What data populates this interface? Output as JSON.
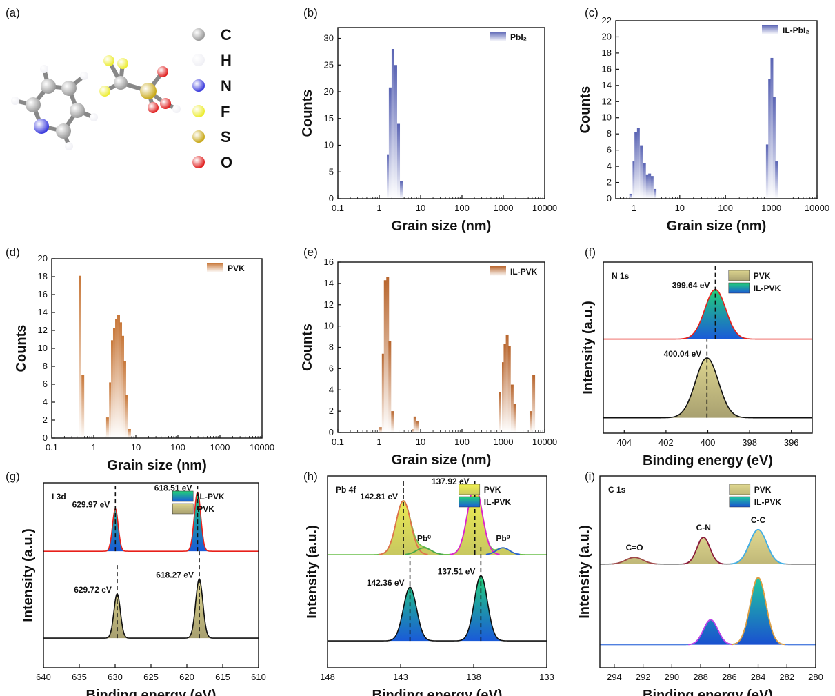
{
  "molecule": {
    "label": "(a)",
    "elements": [
      {
        "symbol": "C",
        "color": "#9a9a9a"
      },
      {
        "symbol": "H",
        "color": "#f0f0f5"
      },
      {
        "symbol": "N",
        "color": "#3a3adc"
      },
      {
        "symbol": "F",
        "color": "#ecec30"
      },
      {
        "symbol": "S",
        "color": "#c8a818"
      },
      {
        "symbol": "O",
        "color": "#e02020"
      }
    ]
  },
  "chart_data": [
    {
      "type": "bar",
      "label": "(b)",
      "xlabel": "Grain size (nm)",
      "ylabel": "Counts",
      "xlog": true,
      "xlim": [
        0.1,
        10000
      ],
      "xticks": [
        0.1,
        1,
        10,
        100,
        1000,
        10000
      ],
      "ylim": [
        0,
        32
      ],
      "yticks": [
        0,
        5,
        10,
        15,
        20,
        25,
        30
      ],
      "legend": "upper right",
      "series": [
        {
          "name": "PbI₂",
          "color": "#5a64b4",
          "x": [
            1.65,
            1.84,
            2.15,
            2.51,
            2.93,
            3.42
          ],
          "values": [
            8.3,
            20.8,
            28,
            25,
            14,
            3.3
          ]
        }
      ]
    },
    {
      "type": "bar",
      "label": "(c)",
      "xlabel": "Grain size (nm)",
      "ylabel": "Counts",
      "xlog": true,
      "xlim": [
        0.4,
        10000
      ],
      "xticks": [
        1,
        10,
        100,
        1000,
        10000
      ],
      "ylim": [
        0,
        22
      ],
      "yticks": [
        0,
        2,
        4,
        6,
        8,
        10,
        12,
        14,
        16,
        18,
        20,
        22
      ],
      "legend": "upper right",
      "series": [
        {
          "name": "IL-PbI₂",
          "color": "#5a64b4",
          "x": [
            0.85,
            1.0,
            1.1,
            1.25,
            1.45,
            1.7,
            1.95,
            2.2,
            2.5,
            2.9,
            820,
            920,
            1030,
            1160,
            1300
          ],
          "values": [
            0.6,
            4.6,
            8.2,
            8.7,
            6.6,
            4.4,
            3,
            3.1,
            2.8,
            1.2,
            6.7,
            14.8,
            17.4,
            12.6,
            4.6
          ]
        }
      ]
    },
    {
      "type": "bar",
      "label": "(d)",
      "xlabel": "Grain size (nm)",
      "ylabel": "Counts",
      "xlog": true,
      "xlim": [
        0.1,
        10000
      ],
      "xticks": [
        0.1,
        1,
        10,
        100,
        1000,
        10000
      ],
      "ylim": [
        0,
        20
      ],
      "yticks": [
        0,
        2,
        4,
        6,
        8,
        10,
        12,
        14,
        16,
        18,
        20
      ],
      "legend": "upper right",
      "series": [
        {
          "name": "PVK",
          "color": "#c8783a",
          "x": [
            0.47,
            0.55,
            2.12,
            2.49,
            2.77,
            3.1,
            3.48,
            3.89,
            4.36,
            4.88,
            5.46,
            6.12,
            7.1
          ],
          "values": [
            18.1,
            7,
            2.3,
            6.2,
            10.9,
            12.3,
            13.3,
            13.7,
            12.9,
            11.4,
            8.6,
            4.8,
            1
          ]
        }
      ]
    },
    {
      "type": "bar",
      "label": "(e)",
      "xlabel": "Grain size (nm)",
      "ylabel": "Counts",
      "xlog": true,
      "xlim": [
        0.1,
        10000
      ],
      "xticks": [
        0.1,
        1,
        10,
        100,
        1000,
        10000
      ],
      "ylim": [
        0,
        16
      ],
      "yticks": [
        0,
        2,
        4,
        6,
        8,
        10,
        12,
        14,
        16
      ],
      "legend": "upper right",
      "series": [
        {
          "name": "IL-PVK",
          "color": "#b8662e",
          "x": [
            1.08,
            1.25,
            1.4,
            1.6,
            1.8,
            2.1,
            6.6,
            7.3,
            8.5,
            826,
            1000,
            1097,
            1240,
            1400,
            1640,
            1900,
            4640,
            5430
          ],
          "values": [
            0.5,
            7.4,
            14.3,
            14.6,
            8.6,
            2,
            0.3,
            1.5,
            1.1,
            3.8,
            6.6,
            8.3,
            9.2,
            8.1,
            4.5,
            2.7,
            2,
            5.4
          ]
        }
      ]
    },
    {
      "type": "xps",
      "label": "(f)",
      "title": "N 1s",
      "xlabel": "Binding energy (eV)",
      "ylabel": "Intensity (a.u.)",
      "xlim": [
        405,
        395
      ],
      "xticks": [
        404,
        402,
        400,
        398,
        396
      ],
      "ylim": [
        0,
        10
      ],
      "center_lines": true,
      "legend": "upper right",
      "series": [
        {
          "name": "PVK",
          "color": "#dcd48e",
          "color2": "#a8a070",
          "line": "#111111",
          "offset": 0.9,
          "peaks": [
            {
              "center": 400.04,
              "height": 3.5,
              "width": 0.55,
              "label": "400.04 eV"
            }
          ]
        },
        {
          "name": "IL-PVK",
          "color": "#22d07a",
          "color2": "#1a5ad8",
          "line": "#e8201a",
          "label_color": "#e8201a",
          "offset": 5.5,
          "peaks": [
            {
              "center": 399.64,
              "height": 2.9,
              "width": 0.5,
              "label": "399.64 eV"
            }
          ]
        }
      ]
    },
    {
      "type": "xps",
      "label": "(g)",
      "title": "I 3d",
      "xlabel": "Binding energy (eV)",
      "ylabel": "Intensity (a.u.)",
      "xlim": [
        640,
        610
      ],
      "xticks": [
        640,
        635,
        630,
        625,
        620,
        615,
        610
      ],
      "ylim": [
        0,
        10
      ],
      "center_lines": true,
      "legend": "upper right",
      "series": [
        {
          "name": "IL-PVK",
          "color": "#22d07a",
          "color2": "#1a5ad8",
          "line": "#e8201a",
          "label_color": "#e8201a",
          "offset": 6.3,
          "peaks": [
            {
              "center": 629.97,
              "height": 2.3,
              "width": 0.4,
              "label": "629.97 eV"
            },
            {
              "center": 618.51,
              "height": 3.2,
              "width": 0.45,
              "label": "618.51 eV"
            }
          ]
        },
        {
          "name": "PVK",
          "color": "#dcd48e",
          "color2": "#a8a070",
          "line": "#111111",
          "offset": 1.6,
          "peaks": [
            {
              "center": 629.72,
              "height": 2.4,
              "width": 0.45,
              "label": "629.72 eV"
            },
            {
              "center": 618.27,
              "height": 3.2,
              "width": 0.5,
              "label": "618.27 eV"
            }
          ]
        }
      ]
    },
    {
      "type": "xps",
      "label": "(h)",
      "title": "Pb 4f",
      "xlabel": "Binding energy (eV)",
      "ylabel": "Intensity (a.u.)",
      "xlim": [
        148,
        133
      ],
      "xticks": [
        148,
        143,
        138,
        133
      ],
      "ylim": [
        0,
        10
      ],
      "center_lines": true,
      "legend": "upper right",
      "series": [
        {
          "name": "PVK",
          "color": "#f2f250",
          "color2": "#c8c860",
          "line": "#6abf4a",
          "offset": 5.9,
          "peaks": [
            {
              "center": 142.81,
              "height": 2.8,
              "width": 0.5,
              "color": "#e0704a",
              "label": "142.81 eV"
            },
            {
              "center": 141.4,
              "height": 0.35,
              "width": 0.5,
              "color": "#4aa84a",
              "label": "Pb⁰"
            },
            {
              "center": 137.92,
              "height": 3.6,
              "width": 0.5,
              "color": "#e020d0",
              "label": "137.92 eV"
            },
            {
              "center": 136.0,
              "height": 0.35,
              "width": 0.45,
              "color": "#2a60d0",
              "label": "Pb⁰"
            }
          ]
        },
        {
          "name": "IL-PVK",
          "color": "#22d07a",
          "color2": "#1a5ad8",
          "line": "#111111",
          "label_color": "#e8201a",
          "offset": 1.4,
          "peaks": [
            {
              "center": 142.36,
              "height": 2.8,
              "width": 0.45,
              "label": "142.36 eV"
            },
            {
              "center": 137.51,
              "height": 3.4,
              "width": 0.45,
              "label": "137.51 eV"
            }
          ]
        }
      ]
    },
    {
      "type": "xps",
      "label": "(i)",
      "title": "C 1s",
      "xlabel": "Binding energy (eV)",
      "ylabel": "Intensity (a.u.)",
      "xlim": [
        295,
        280
      ],
      "xticks": [
        294,
        292,
        290,
        288,
        286,
        284,
        282,
        280
      ],
      "ylim": [
        0,
        10
      ],
      "center_lines": false,
      "legend": "upper right",
      "series": [
        {
          "name": "PVK",
          "color": "#e0d890",
          "color2": "#c0b878",
          "line": "#777777",
          "offset": 5.4,
          "peaks": [
            {
              "center": 292.6,
              "height": 0.35,
              "width": 0.6,
              "color": "#a04848",
              "label": "C=O"
            },
            {
              "center": 287.8,
              "height": 1.4,
              "width": 0.45,
              "color": "#8b1a3a",
              "label": "C-N"
            },
            {
              "center": 284.0,
              "height": 1.8,
              "width": 0.6,
              "color": "#40b0e8",
              "label": "C-C"
            }
          ]
        },
        {
          "name": "IL-PVK",
          "color": "#20c8a0",
          "color2": "#1a50d0",
          "line": "#5080e0",
          "offset": 1.2,
          "peaks": [
            {
              "center": 287.3,
              "height": 1.3,
              "width": 0.5,
              "color": "#c040e8"
            },
            {
              "center": 284.0,
              "height": 3.5,
              "width": 0.55,
              "color": "#e0a040"
            }
          ]
        }
      ]
    }
  ]
}
